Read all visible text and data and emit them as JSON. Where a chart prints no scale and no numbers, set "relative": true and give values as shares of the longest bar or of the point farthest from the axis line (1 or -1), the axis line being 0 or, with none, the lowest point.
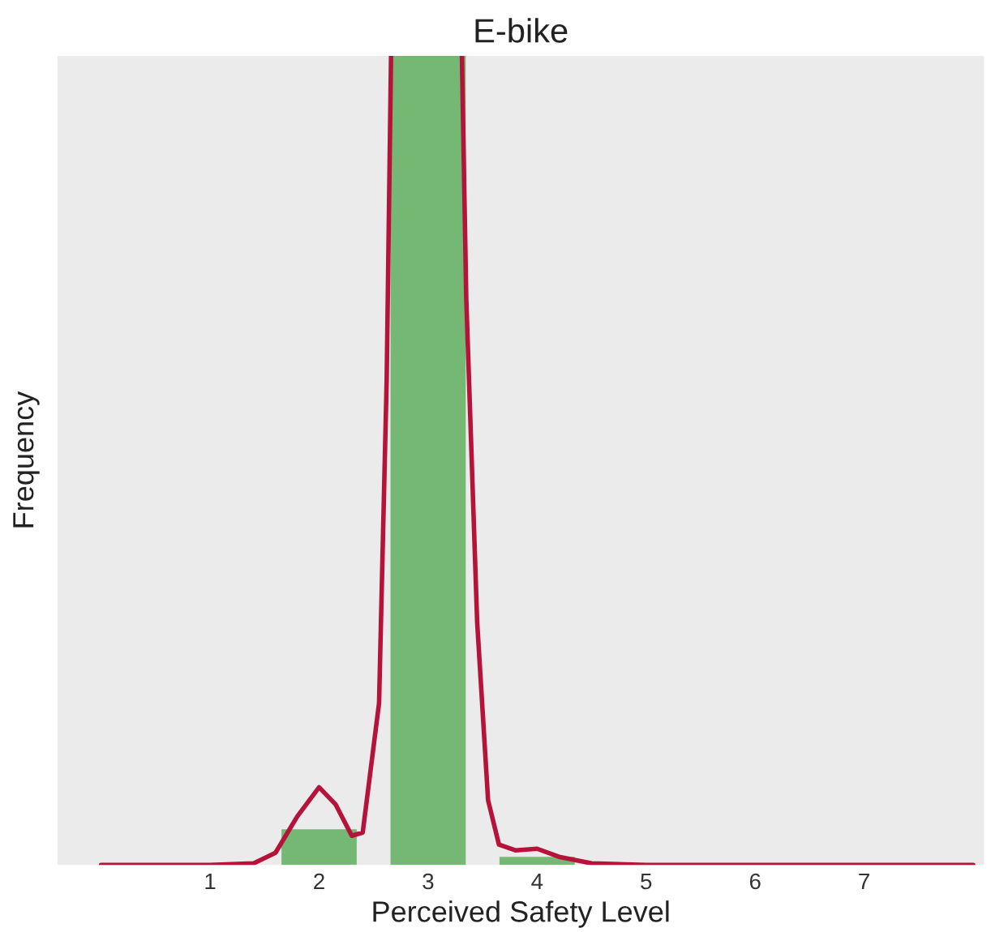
{
  "chart_data": {
    "type": "bar",
    "title": "E-bike",
    "xlabel": "Perceived Safety Level",
    "ylabel": "Frequency",
    "relative": true,
    "xlim": [
      -0.4,
      8.1
    ],
    "xticks": [
      1,
      2,
      3,
      4,
      5,
      6,
      7
    ],
    "grid": false,
    "legend": false,
    "series": [
      {
        "color": "#74b874",
        "x": [
          2,
          3,
          4
        ],
        "values": [
          0.044,
          1,
          0.01
        ]
      },
      {
        "type": "line",
        "color": "#b5133a",
        "x": [
          0,
          1,
          1.4,
          1.6,
          1.8,
          2.0,
          2.15,
          2.3,
          2.4,
          2.55,
          2.62,
          2.66,
          3.0,
          3.31,
          3.35,
          3.45,
          3.55,
          3.65,
          3.8,
          4.0,
          4.2,
          4.5,
          5,
          8
        ],
        "values": [
          0,
          0,
          0.002,
          0.015,
          0.06,
          0.096,
          0.075,
          0.036,
          0.04,
          0.2,
          0.6,
          1,
          null,
          1,
          0.7,
          0.3,
          0.08,
          0.025,
          0.018,
          0.02,
          0.01,
          0.002,
          0,
          0
        ]
      }
    ]
  }
}
